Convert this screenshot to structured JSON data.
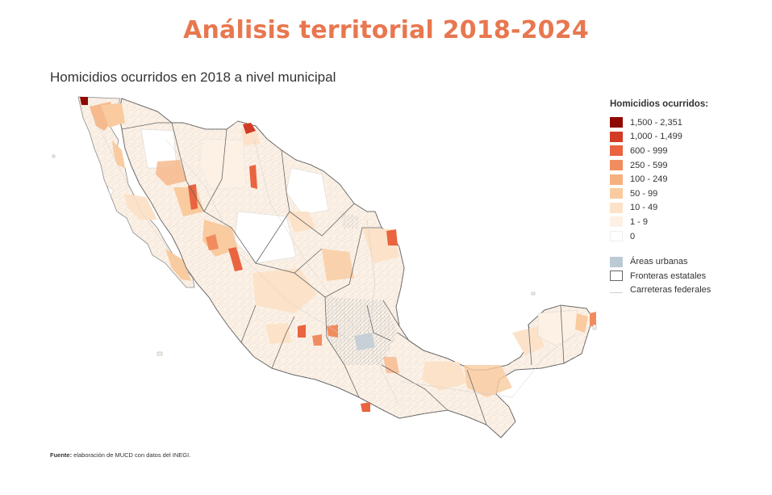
{
  "header": {
    "title": "Análisis territorial 2018-2024",
    "title_color": "#e8774f",
    "subtitle": "Homicidios ocurridos en 2018 a nivel municipal"
  },
  "legend": {
    "title": "Homicidios ocurridos:",
    "items": [
      {
        "label": "1,500 - 2,351",
        "color": "#8e0a00"
      },
      {
        "label": "1,000 - 1,499",
        "color": "#d23b25"
      },
      {
        "label": "600 - 999",
        "color": "#e9643f"
      },
      {
        "label": "250 - 599",
        "color": "#f18c5f"
      },
      {
        "label": "100 - 249",
        "color": "#f6b07f"
      },
      {
        "label": "50 - 99",
        "color": "#f9cb9f"
      },
      {
        "label": "10 - 49",
        "color": "#fce2c8"
      },
      {
        "label": "1 - 9",
        "color": "#fdf1e5"
      },
      {
        "label": "0",
        "color": "#ffffff"
      }
    ],
    "extra": [
      {
        "label": "Áreas urbanas",
        "icon": "urban-area-swatch",
        "color": "#bccad4"
      },
      {
        "label": "Fronteras estatales",
        "icon": "state-border-swatch",
        "color": "#666666"
      },
      {
        "label": "Carreteras federales",
        "icon": "federal-road-line",
        "color": "#cfcfcf"
      }
    ]
  },
  "source": {
    "prefix": "Fuente:",
    "text": " elaboración de MUCD con datos del INEGI."
  },
  "map": {
    "country": "México",
    "level": "municipal",
    "hotspot_classes": [
      "1,500 - 2,351",
      "1,000 - 1,499",
      "600 - 999",
      "250 - 599",
      "100 - 249",
      "50 - 99"
    ]
  }
}
